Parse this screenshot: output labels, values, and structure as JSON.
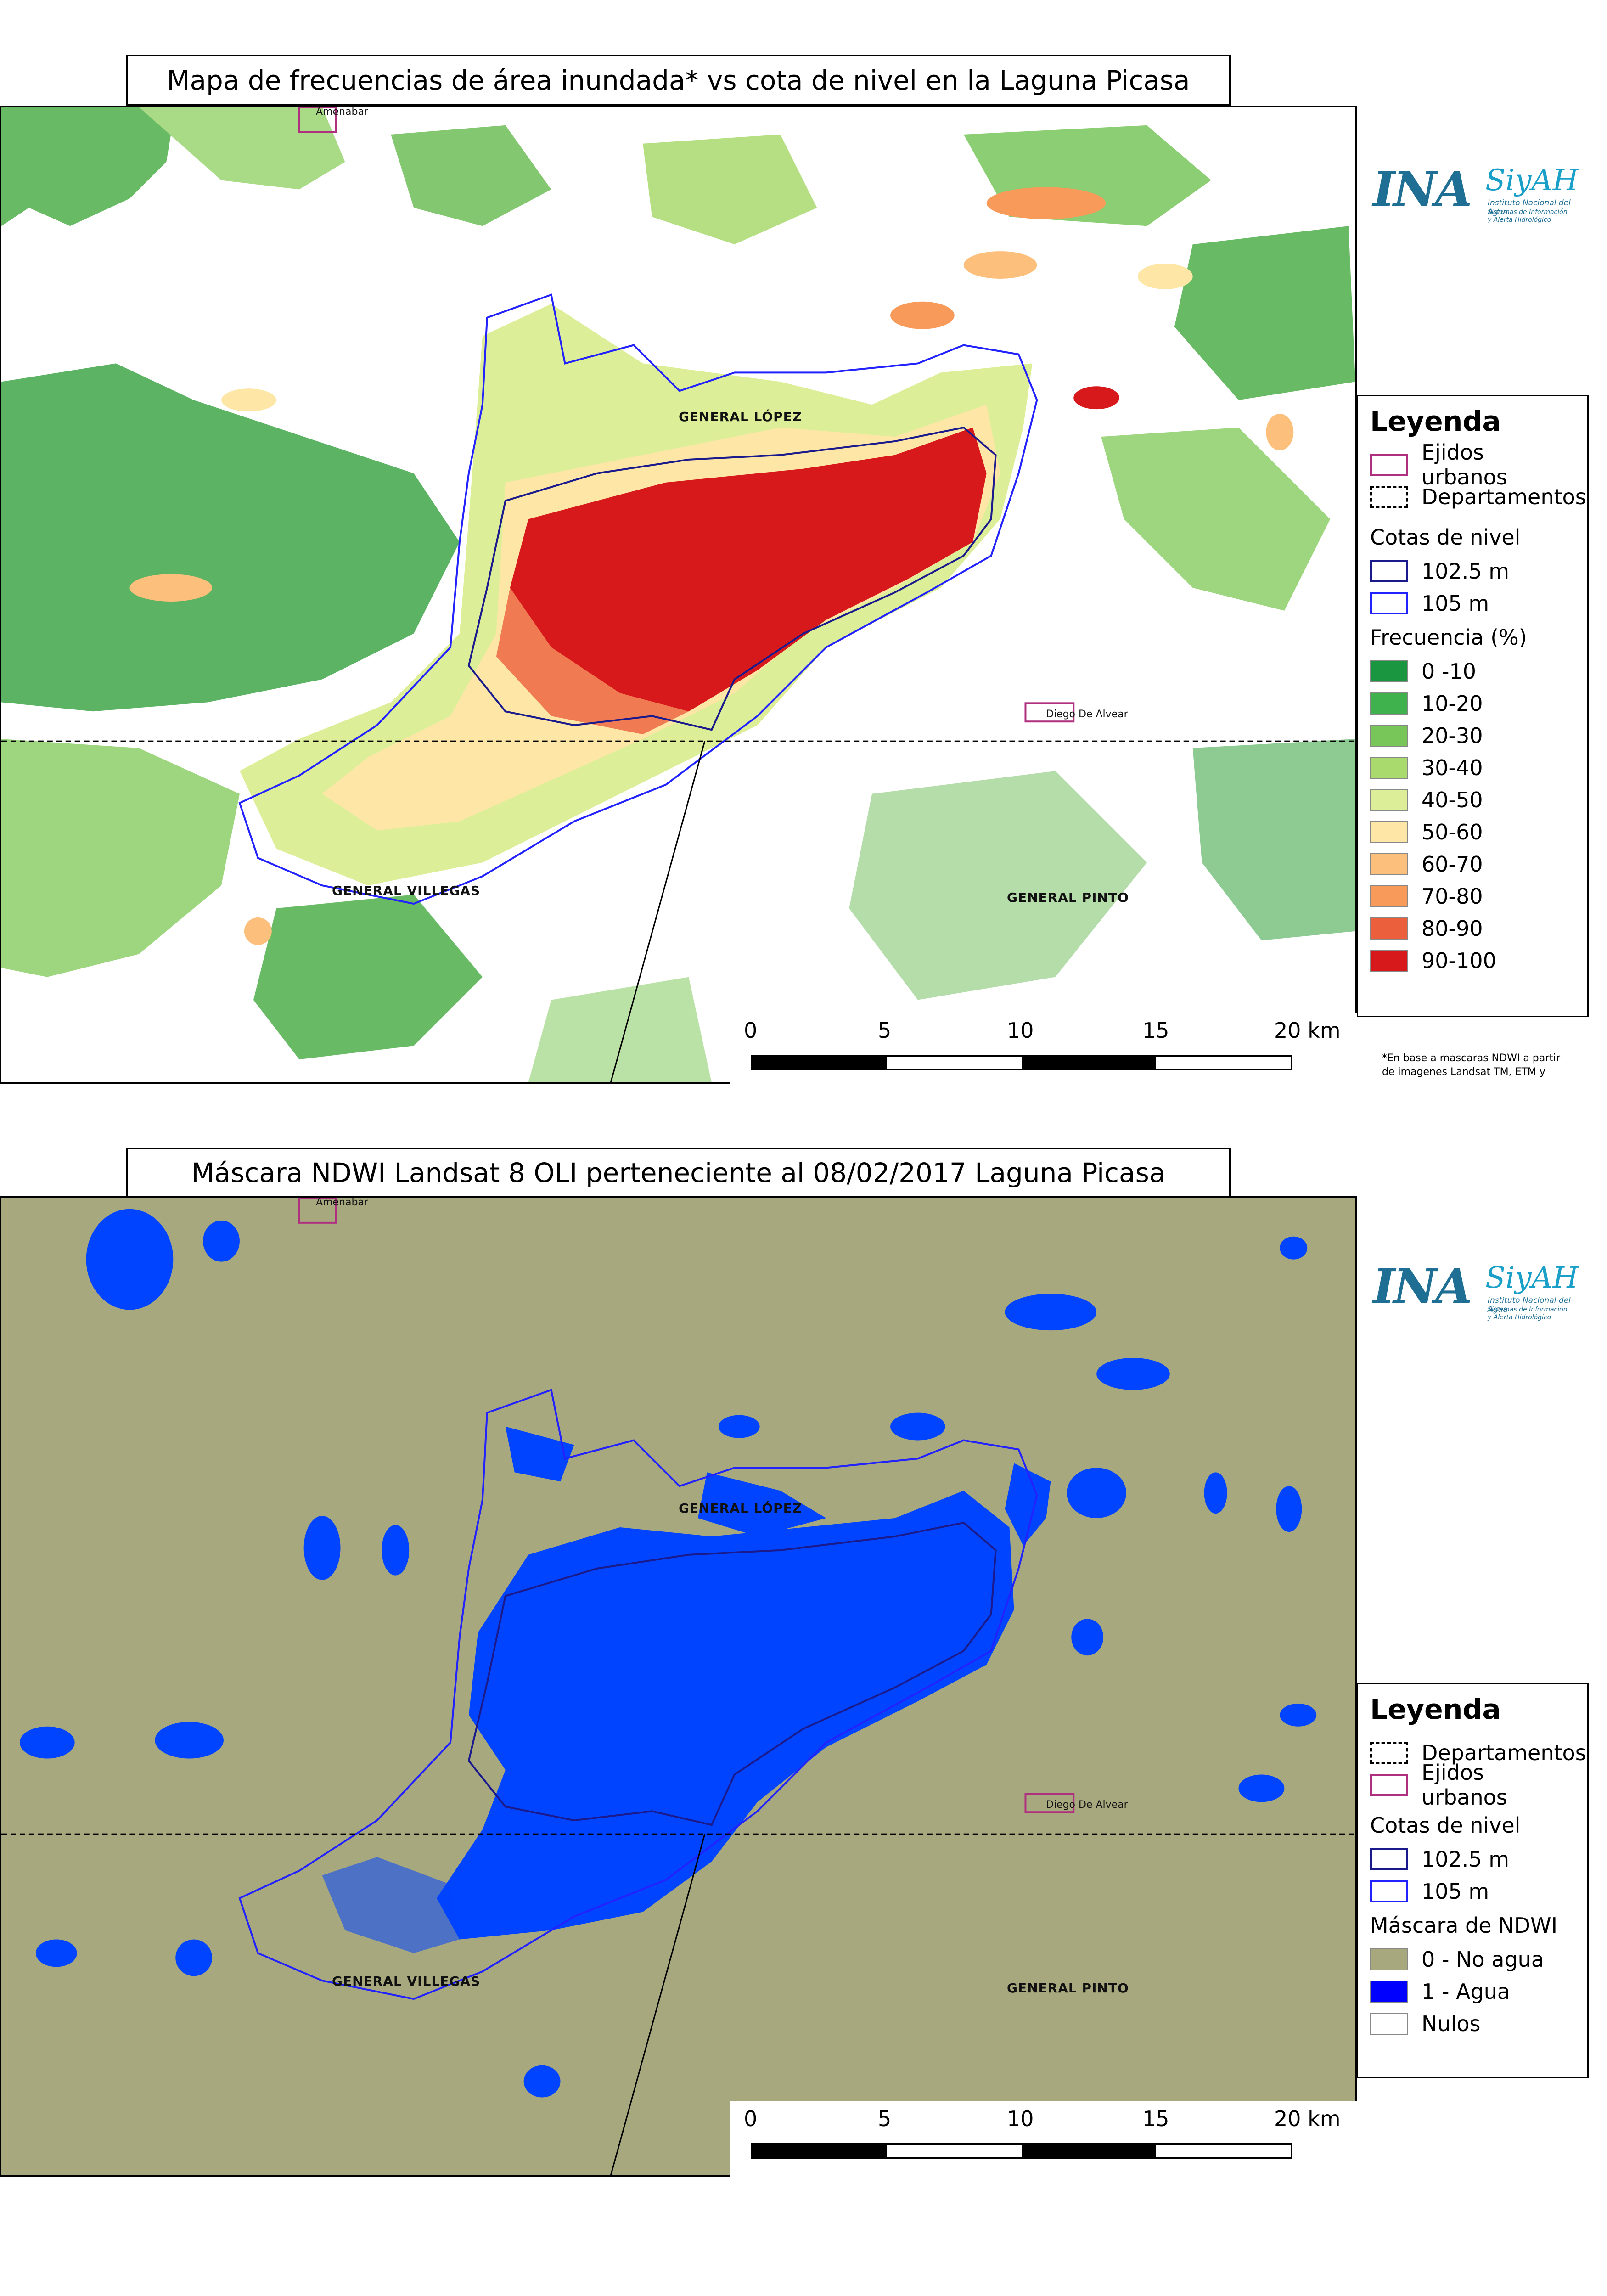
{
  "map1": {
    "title": "Mapa de frecuencias de área inundada* vs cota de nivel en la Laguna Picasa",
    "places": {
      "amenabar": "Amenabar",
      "general_lopez": "GENERAL LÓPEZ",
      "general_villegas": "GENERAL VILLEGAS",
      "general_pinto": "GENERAL PINTO",
      "diego_de_alvear": "Diego De Alvear"
    },
    "legend": {
      "title": "Leyenda",
      "ejidos": "Ejidos urbanos",
      "departamentos": "Departamentos",
      "cotas_title": "Cotas de nivel",
      "cota1": "102.5 m",
      "cota2": "105 m",
      "freq_title": "Frecuencia (%)",
      "classes": [
        {
          "label": "0 -10",
          "color": "#1a9641"
        },
        {
          "label": "10-20",
          "color": "#3fb24d"
        },
        {
          "label": "20-30",
          "color": "#78c65a"
        },
        {
          "label": "30-40",
          "color": "#a9da6e"
        },
        {
          "label": "40-50",
          "color": "#dcef98"
        },
        {
          "label": "50-60",
          "color": "#fde6a6"
        },
        {
          "label": "60-70",
          "color": "#fdbf7c"
        },
        {
          "label": "70-80",
          "color": "#f89a5a"
        },
        {
          "label": "80-90",
          "color": "#ec5f3c"
        },
        {
          "label": "90-100",
          "color": "#d7191c"
        }
      ]
    },
    "scale": {
      "labels": [
        "0",
        "5",
        "10",
        "15",
        "20 km"
      ]
    },
    "footnote": {
      "line1": "*En base a mascaras NDWI a partir",
      "line2": "de imagenes Landsat TM, ETM y"
    }
  },
  "map2": {
    "title": "Máscara NDWI Landsat 8 OLI perteneciente al 08/02/2017 Laguna Picasa",
    "places": {
      "amenabar": "Amenabar",
      "general_lopez": "GENERAL LÓPEZ",
      "general_villegas": "GENERAL VILLEGAS",
      "general_pinto": "GENERAL PINTO",
      "diego_de_alvear": "Diego De Alvear"
    },
    "legend": {
      "title": "Leyenda",
      "departamentos": "Departamentos",
      "ejidos": "Ejidos urbanos",
      "cotas_title": "Cotas de nivel",
      "cota1": "102.5 m",
      "cota2": "105 m",
      "ndwi_title": "Máscara de NDWI",
      "classes": [
        {
          "label": "0 - No agua",
          "color": "#a8a87e"
        },
        {
          "label": "1 - Agua",
          "color": "#0000ff"
        },
        {
          "label": "Nulos",
          "color": "#ffffff"
        }
      ]
    },
    "scale": {
      "labels": [
        "0",
        "5",
        "10",
        "15",
        "20 km"
      ]
    }
  },
  "logo": {
    "ina": "INA",
    "siyah": "SiyAH",
    "sub1": "Instituto Nacional del Agua",
    "sub2": "Sistemas de Información",
    "sub3": "y Alerta Hidrológico"
  },
  "colors": {
    "cota_102_5": "#1a1a8c",
    "cota_105": "#2222ff",
    "ejidos": "#b03080",
    "water": "#0044ff",
    "land": "#a8a87e"
  }
}
